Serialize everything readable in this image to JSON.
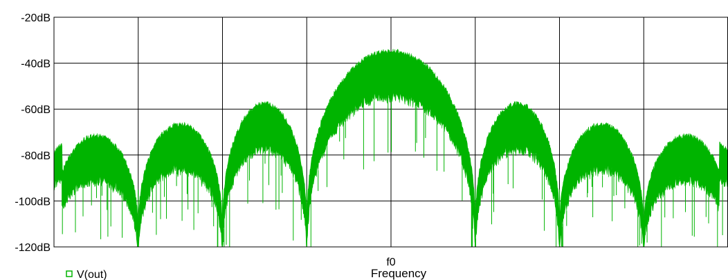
{
  "chart_data": {
    "type": "line",
    "xlabel": "Frequency",
    "x_tick_labels": [
      "f0"
    ],
    "y_tick_labels": [
      "-20dB",
      "-40dB",
      "-60dB",
      "-80dB",
      "-100dB",
      "-120dB"
    ],
    "y_ticks": [
      -20,
      -40,
      -60,
      -80,
      -100,
      -120
    ],
    "ylim": [
      -120,
      -20
    ],
    "xlim": [
      -4,
      4
    ],
    "x_grid": [
      -4,
      -3,
      -2,
      -1,
      0,
      1,
      2,
      3,
      4
    ],
    "grid": true,
    "legend_placement": "bottom-left",
    "series": [
      {
        "name": "V(out)",
        "color": "#00b400",
        "envelope_x": [
          -4.0,
          -3.5,
          -3.0,
          -2.5,
          -2.0,
          -1.5,
          -1.0,
          -0.5,
          0.0,
          0.5,
          1.0,
          1.5,
          2.0,
          2.5,
          3.0,
          3.5,
          4.0
        ],
        "envelope_y": [
          -81,
          -72,
          -120,
          -67,
          -120,
          -58,
          -90,
          -40,
          -35,
          -40,
          -90,
          -58,
          -120,
          -67,
          -120,
          -72,
          -81
        ],
        "lobes": [
          {
            "x_range": [
              -4.0,
              -3.0
            ],
            "peak": -71
          },
          {
            "x_range": [
              -3.0,
              -2.0
            ],
            "peak": -66
          },
          {
            "x_range": [
              -2.0,
              -1.0
            ],
            "peak": -57
          },
          {
            "x_range": [
              -1.0,
              1.0
            ],
            "peak": -34
          },
          {
            "x_range": [
              1.0,
              2.0
            ],
            "peak": -57
          },
          {
            "x_range": [
              2.0,
              3.0
            ],
            "peak": -66
          },
          {
            "x_range": [
              3.0,
              4.0
            ],
            "peak": -71
          }
        ]
      }
    ]
  }
}
